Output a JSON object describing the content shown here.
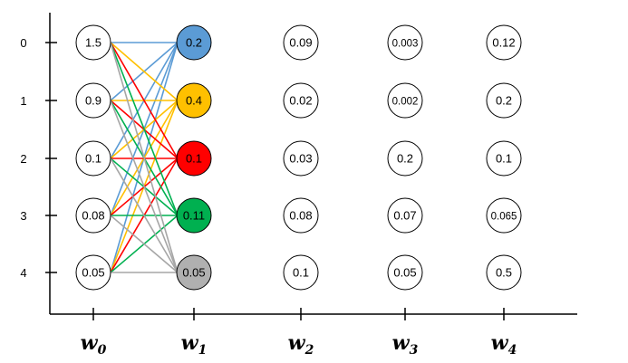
{
  "diagram": {
    "rows": [
      "0",
      "1",
      "2",
      "3",
      "4"
    ],
    "columns": [
      {
        "name": "w",
        "sub": "0",
        "values": [
          "1.5",
          "0.9",
          "0.1",
          "0.08",
          "0.05"
        ]
      },
      {
        "name": "w",
        "sub": "1",
        "values": [
          "0.2",
          "0.4",
          "0.1",
          "0.11",
          "0.05"
        ]
      },
      {
        "name": "w",
        "sub": "2",
        "values": [
          "0.09",
          "0.02",
          "0.03",
          "0.08",
          "0.1"
        ]
      },
      {
        "name": "w",
        "sub": "3",
        "values": [
          "0.003",
          "0.002",
          "0.2",
          "0.07",
          "0.05"
        ]
      },
      {
        "name": "w",
        "sub": "4",
        "values": [
          "0.12",
          "0.2",
          "0.1",
          "0.065",
          "0.5"
        ]
      }
    ],
    "w1_fill_colors": [
      "#5b9bd5",
      "#ffc000",
      "#ff0000",
      "#00b050",
      "#b0b0b0"
    ],
    "edge_colors": [
      "#5b9bd5",
      "#ffc000",
      "#ff0000",
      "#00b050",
      "#a6a6a6"
    ],
    "edges": "every w0 node connects to every w1 node; edge color follows the w1 target node"
  }
}
